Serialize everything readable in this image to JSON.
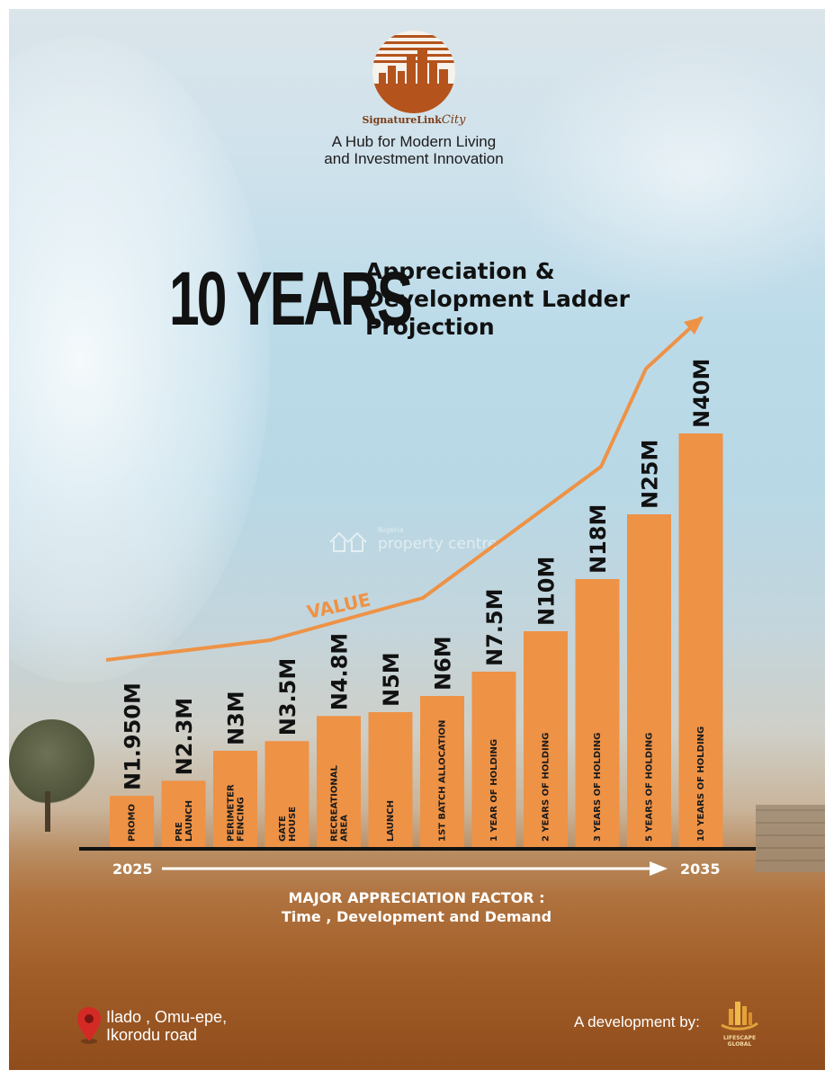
{
  "header": {
    "brand_main": "SignatureLink",
    "brand_script": "City",
    "tagline_line1": "A Hub for Modern Living",
    "tagline_line2": "and Investment Innovation"
  },
  "title": {
    "big": "10 YEARS",
    "line1": "Appreciation &",
    "line2": "Development Ladder",
    "line3": "Projection"
  },
  "watermark": {
    "small": "Nigeria",
    "big": "property centre"
  },
  "chart_data": {
    "type": "bar",
    "categories": [
      "PROMO",
      "PRE LAUNCH",
      "PERIMETER FENCING",
      "GATE HOUSE",
      "RECREATIONAL AREA",
      "LAUNCH",
      "1ST BATCH ALLOCATION",
      "1 YEAR OF HOLDING",
      "2 YEARS OF HOLDING",
      "3 YEARS OF HOLDING",
      "5 YEARS OF HOLDING",
      "10 YEARS OF HOLDING"
    ],
    "category_lines": [
      [
        "PROMO"
      ],
      [
        "PRE",
        "LAUNCH"
      ],
      [
        "PERIMETER",
        "FENCING"
      ],
      [
        "GATE",
        "HOUSE"
      ],
      [
        "RECREATIONAL",
        "AREA"
      ],
      [
        "LAUNCH"
      ],
      [
        "1ST BATCH ALLOCATION"
      ],
      [
        "1 YEAR OF HOLDING"
      ],
      [
        "2 YEARS OF HOLDING"
      ],
      [
        "3 YEARS OF HOLDING"
      ],
      [
        "5 YEARS OF HOLDING"
      ],
      [
        "10 YEARS OF HOLDING"
      ]
    ],
    "values": [
      1.95,
      2.3,
      3,
      3.5,
      4.8,
      5,
      6,
      7.5,
      10,
      18,
      25,
      40
    ],
    "value_labels": [
      "N1.950M",
      "N2.3M",
      "N3M",
      "N3.5M",
      "N4.8M",
      "N5M",
      "N6M",
      "N7.5M",
      "N10M",
      "N18M",
      "N25M",
      "N40M"
    ],
    "trend_label": "VALUE",
    "x_start": "2025",
    "x_end": "2035",
    "bar_color": "#ee9246"
  },
  "footer": {
    "factor_line1": "MAJOR APPRECIATION FACTOR :",
    "factor_line2": "Time , Development and Demand",
    "location_line1": "Ilado , Omu-epe,",
    "location_line2": "Ikorodu road",
    "developer_label": "A development by:",
    "developer_name_line1": "LIFESCAPE",
    "developer_name_line2": "GLOBAL"
  }
}
